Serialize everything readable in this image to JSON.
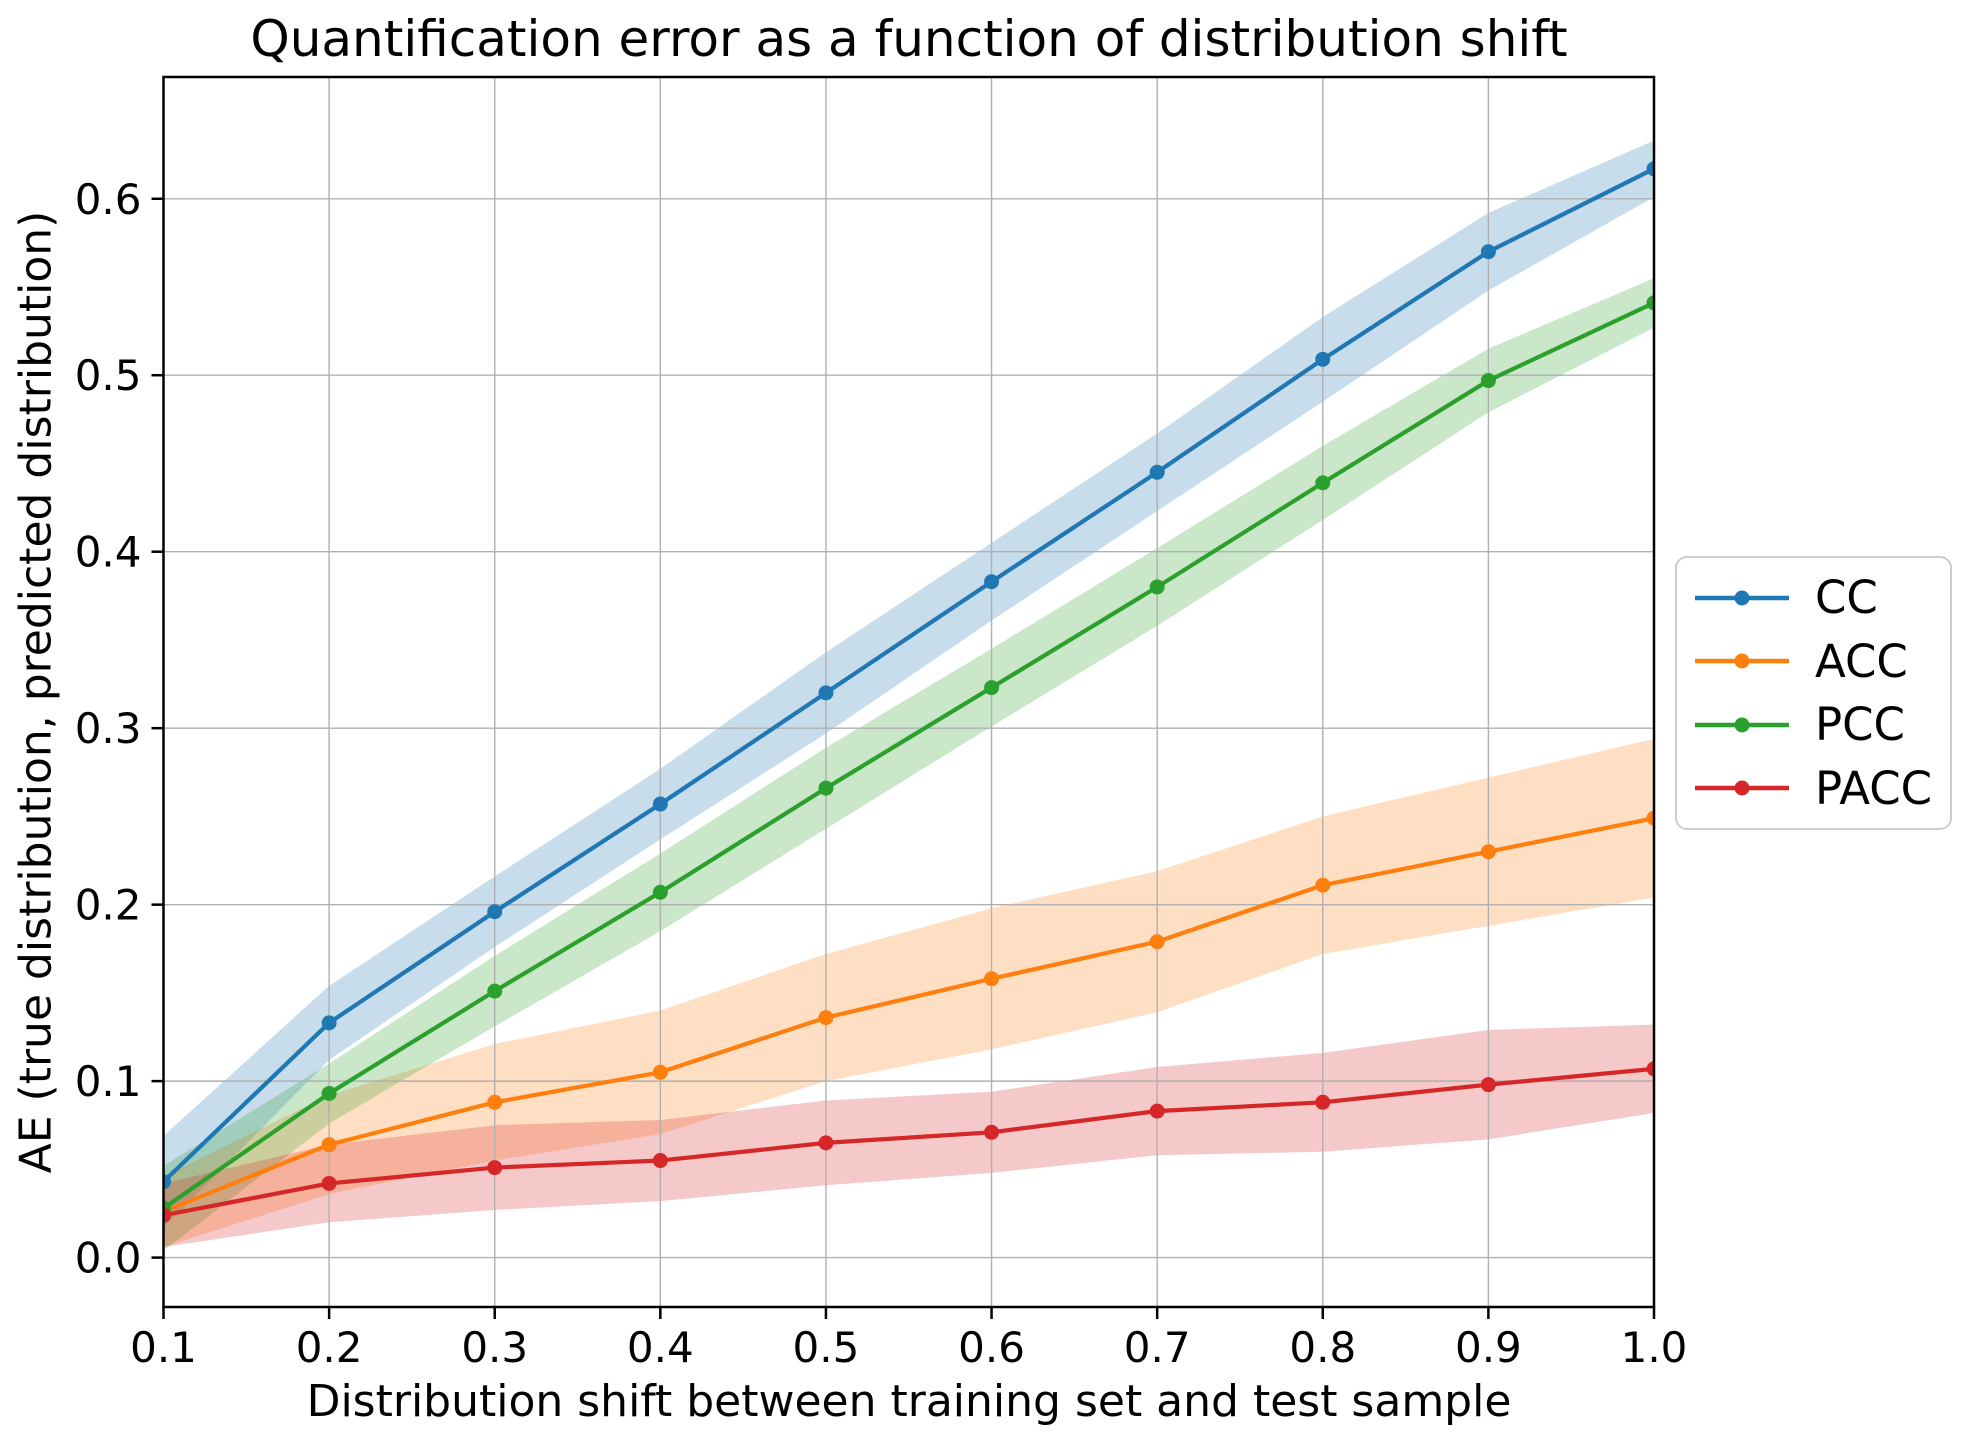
{
  "chart_data": {
    "type": "line",
    "title": "Quantification error as a function of distribution shift",
    "xlabel": "Distribution shift between training set and test sample",
    "ylabel": "AE (true distribution, predicted distribution)",
    "x": [
      0.1,
      0.2,
      0.3,
      0.4,
      0.5,
      0.6,
      0.7,
      0.8,
      0.9,
      1.0
    ],
    "xlim": [
      0.1,
      1.0
    ],
    "ylim": [
      -0.028,
      0.669
    ],
    "grid": true,
    "legend_position": "right-outside",
    "band_alpha": 0.25,
    "marker": "circle",
    "xticks": {
      "values": [
        0.1,
        0.2,
        0.3,
        0.4,
        0.5,
        0.6,
        0.7,
        0.8,
        0.9,
        1.0
      ],
      "labels": [
        "0.1",
        "0.2",
        "0.3",
        "0.4",
        "0.5",
        "0.6",
        "0.7",
        "0.8",
        "0.9",
        "1.0"
      ]
    },
    "yticks": {
      "values": [
        0.0,
        0.1,
        0.2,
        0.3,
        0.4,
        0.5,
        0.6
      ],
      "labels": [
        "0.0",
        "0.1",
        "0.2",
        "0.3",
        "0.4",
        "0.5",
        "0.6"
      ]
    },
    "series": [
      {
        "name": "CC",
        "color": "#1f77b4",
        "values": [
          0.043,
          0.133,
          0.196,
          0.257,
          0.32,
          0.383,
          0.445,
          0.509,
          0.57,
          0.617
        ],
        "band_halfwidth": [
          0.026,
          0.021,
          0.02,
          0.02,
          0.023,
          0.022,
          0.022,
          0.024,
          0.022,
          0.016
        ]
      },
      {
        "name": "ACC",
        "color": "#ff7f0e",
        "values": [
          0.026,
          0.064,
          0.088,
          0.105,
          0.136,
          0.158,
          0.179,
          0.211,
          0.23,
          0.249
        ],
        "band_halfwidth": [
          0.02,
          0.028,
          0.033,
          0.035,
          0.036,
          0.04,
          0.04,
          0.039,
          0.042,
          0.045
        ]
      },
      {
        "name": "PCC",
        "color": "#2ca02c",
        "values": [
          0.028,
          0.093,
          0.151,
          0.207,
          0.266,
          0.323,
          0.38,
          0.439,
          0.497,
          0.541
        ],
        "band_halfwidth": [
          0.024,
          0.017,
          0.02,
          0.022,
          0.023,
          0.022,
          0.022,
          0.021,
          0.018,
          0.014
        ]
      },
      {
        "name": "PACC",
        "color": "#d62728",
        "values": [
          0.024,
          0.042,
          0.051,
          0.055,
          0.065,
          0.071,
          0.083,
          0.088,
          0.098,
          0.107
        ],
        "band_halfwidth": [
          0.018,
          0.022,
          0.024,
          0.023,
          0.024,
          0.023,
          0.025,
          0.028,
          0.031,
          0.025
        ]
      }
    ]
  },
  "colors": {
    "background": "#ffffff",
    "grid": "#b0b0b0",
    "spine": "#000000",
    "tick_text": "#000000",
    "legend_border": "#cccccc"
  }
}
